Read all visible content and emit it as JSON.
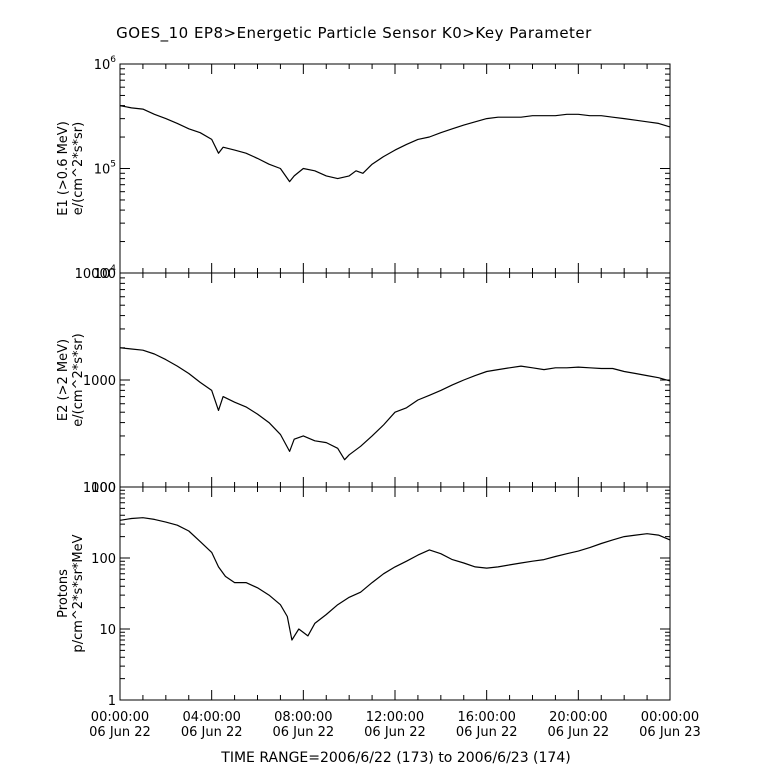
{
  "header": {
    "title": "GOES_10  EP8>Energetic Particle Sensor  K0>Key Parameter"
  },
  "footer": {
    "time_range": "TIME RANGE=2006/6/22 (173) to 2006/6/23 (174)"
  },
  "colors": {
    "line": "#000000",
    "background": "#ffffff"
  },
  "chart_data": [
    {
      "type": "line",
      "name": "E1",
      "ylabel": [
        "E1 (>0.6 MeV)",
        "e/(cm^2*s*sr)"
      ],
      "yscale": "log",
      "ylim": [
        10000,
        1000000
      ],
      "yticks": [
        {
          "value": 10000,
          "mant": "10",
          "exp": "4"
        },
        {
          "value": 100000,
          "mant": "10",
          "exp": "5"
        },
        {
          "value": 1000000,
          "mant": "10",
          "exp": "6"
        }
      ],
      "x_hours": [
        0,
        0.5,
        1,
        1.5,
        2,
        2.5,
        3,
        3.5,
        4,
        4.3,
        4.5,
        5,
        5.5,
        6,
        6.5,
        7,
        7.4,
        7.6,
        8,
        8.5,
        9,
        9.5,
        10,
        10.3,
        10.6,
        11,
        11.5,
        12,
        12.5,
        13,
        13.5,
        14,
        14.5,
        15,
        15.5,
        16,
        16.5,
        17,
        17.5,
        18,
        18.5,
        19,
        19.5,
        20,
        20.5,
        21,
        21.5,
        22,
        22.5,
        23,
        23.5,
        24
      ],
      "values": [
        400000,
        380000,
        370000,
        330000,
        300000,
        270000,
        240000,
        220000,
        190000,
        140000,
        160000,
        150000,
        140000,
        125000,
        110000,
        100000,
        75000,
        85000,
        100000,
        95000,
        85000,
        80000,
        85000,
        95000,
        90000,
        110000,
        130000,
        150000,
        170000,
        190000,
        200000,
        220000,
        240000,
        260000,
        280000,
        300000,
        310000,
        310000,
        310000,
        320000,
        320000,
        320000,
        330000,
        330000,
        320000,
        320000,
        310000,
        300000,
        290000,
        280000,
        270000,
        250000
      ]
    },
    {
      "type": "line",
      "name": "E2",
      "ylabel": [
        "E2 (>2 MeV)",
        "e/(cm^2*s*sr)"
      ],
      "yscale": "log",
      "ylim": [
        100,
        10000
      ],
      "yticks": [
        {
          "value": 100,
          "label": "100"
        },
        {
          "value": 1000,
          "label": "1000"
        },
        {
          "value": 10000,
          "label": "10000"
        }
      ],
      "x_hours": [
        0,
        0.5,
        1,
        1.5,
        2,
        2.5,
        3,
        3.5,
        4,
        4.3,
        4.5,
        5,
        5.5,
        6,
        6.5,
        7,
        7.4,
        7.6,
        8,
        8.5,
        9,
        9.5,
        9.8,
        10,
        10.5,
        11,
        11.5,
        12,
        12.5,
        13,
        13.5,
        14,
        14.5,
        15,
        15.5,
        16,
        16.5,
        17,
        17.5,
        18,
        18.5,
        19,
        19.5,
        20,
        20.5,
        21,
        21.5,
        22,
        22.5,
        23,
        23.5,
        24
      ],
      "values": [
        2000,
        1950,
        1900,
        1750,
        1550,
        1350,
        1150,
        950,
        800,
        520,
        700,
        620,
        560,
        480,
        400,
        310,
        215,
        280,
        300,
        270,
        260,
        230,
        180,
        200,
        240,
        300,
        380,
        500,
        550,
        650,
        720,
        800,
        900,
        1000,
        1100,
        1200,
        1250,
        1300,
        1350,
        1300,
        1250,
        1300,
        1300,
        1320,
        1300,
        1280,
        1280,
        1200,
        1150,
        1100,
        1050,
        980
      ]
    },
    {
      "type": "line",
      "name": "Protons",
      "ylabel": [
        "Protons",
        "p/cm^2*s*sr*MeV"
      ],
      "yscale": "log",
      "ylim": [
        1,
        1000
      ],
      "yticks": [
        {
          "value": 1,
          "label": "1"
        },
        {
          "value": 10,
          "label": "10"
        },
        {
          "value": 100,
          "label": "100"
        },
        {
          "value": 1000,
          "label": "1000"
        }
      ],
      "x_hours": [
        0,
        0.5,
        1,
        1.5,
        2,
        2.5,
        3,
        3.5,
        4,
        4.3,
        4.6,
        5,
        5.5,
        6,
        6.5,
        7,
        7.3,
        7.5,
        7.8,
        8.2,
        8.5,
        9,
        9.5,
        10,
        10.5,
        11,
        11.5,
        12,
        12.5,
        13,
        13.5,
        14,
        14.5,
        15,
        15.5,
        16,
        16.5,
        17,
        17.5,
        18,
        18.5,
        19,
        19.5,
        20,
        20.5,
        21,
        21.5,
        22,
        22.5,
        23,
        23.5,
        24
      ],
      "values": [
        340,
        360,
        370,
        350,
        320,
        290,
        240,
        170,
        120,
        75,
        55,
        45,
        45,
        38,
        30,
        22,
        15,
        7,
        10,
        8,
        12,
        16,
        22,
        28,
        33,
        45,
        60,
        75,
        90,
        110,
        130,
        115,
        95,
        85,
        75,
        72,
        75,
        80,
        85,
        90,
        95,
        105,
        115,
        125,
        140,
        160,
        180,
        200,
        210,
        220,
        210,
        180
      ]
    }
  ],
  "x_axis": {
    "range_hours": [
      0,
      24
    ],
    "ticks": [
      {
        "hour": 0,
        "time": "00:00:00",
        "date": "06 Jun 22"
      },
      {
        "hour": 4,
        "time": "04:00:00",
        "date": "06 Jun 22"
      },
      {
        "hour": 8,
        "time": "08:00:00",
        "date": "06 Jun 22"
      },
      {
        "hour": 12,
        "time": "12:00:00",
        "date": "06 Jun 22"
      },
      {
        "hour": 16,
        "time": "16:00:00",
        "date": "06 Jun 22"
      },
      {
        "hour": 20,
        "time": "20:00:00",
        "date": "06 Jun 22"
      },
      {
        "hour": 24,
        "time": "00:00:00",
        "date": "06 Jun 23"
      }
    ]
  }
}
